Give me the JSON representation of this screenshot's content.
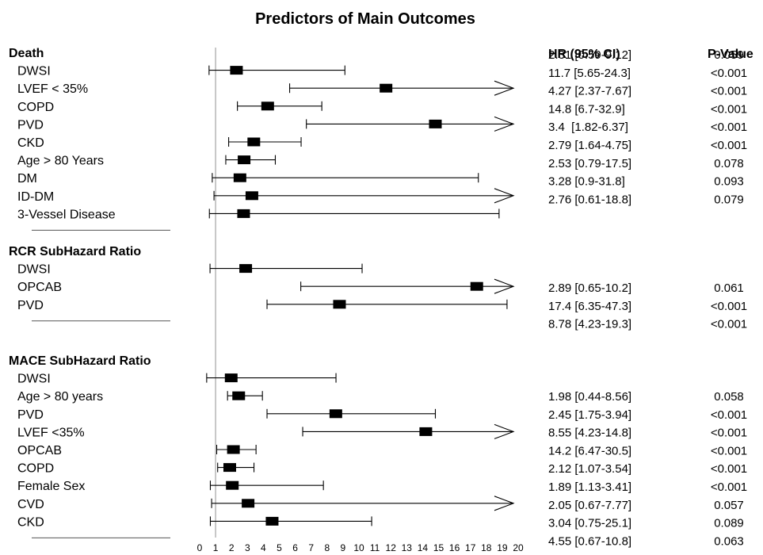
{
  "chart_data": {
    "type": "forest",
    "title": "Predictors of Main Outcomes",
    "header_hr": "HR (95% CI)",
    "header_p": "P-Value",
    "reference_line": 1,
    "xlim": [
      0,
      20
    ],
    "ticks": [
      "0",
      "1",
      "2",
      "3",
      "4",
      "5",
      "6",
      "7",
      "8",
      "9",
      "10",
      "11",
      "12",
      "13",
      "14",
      "15",
      "16",
      "17",
      "18",
      "19",
      "20"
    ],
    "sections": [
      {
        "title": "Death",
        "rows": [
          {
            "label": "DWSI",
            "est": 2.31,
            "lo": 0.59,
            "hi": 9.12,
            "arrow": false
          },
          {
            "label": "LVEF < 35%",
            "est": 11.7,
            "lo": 5.65,
            "hi": 24.3,
            "arrow": true
          },
          {
            "label": "COPD",
            "est": 4.27,
            "lo": 2.37,
            "hi": 7.67,
            "arrow": false
          },
          {
            "label": "PVD",
            "est": 14.8,
            "lo": 6.7,
            "hi": 32.9,
            "arrow": true
          },
          {
            "label": "CKD",
            "est": 3.4,
            "lo": 1.82,
            "hi": 6.37,
            "arrow": false
          },
          {
            "label": "Age > 80 Years",
            "est": 2.79,
            "lo": 1.64,
            "hi": 4.75,
            "arrow": false
          },
          {
            "label": "DM",
            "est": 2.53,
            "lo": 0.79,
            "hi": 17.5,
            "arrow": false
          },
          {
            "label": "ID-DM",
            "est": 3.28,
            "lo": 0.9,
            "hi": 31.8,
            "arrow": true
          },
          {
            "label": "3-Vessel Disease",
            "est": 2.76,
            "lo": 0.61,
            "hi": 18.8,
            "arrow": false
          }
        ],
        "values": [
          {
            "hr": "2.31 [0.59-9.12]",
            "p": "0.059"
          },
          {
            "hr": "11.7 [5.65-24.3]",
            "p": "<0.001"
          },
          {
            "hr": "4.27 [2.37-7.67]",
            "p": "<0.001"
          },
          {
            "hr": "14.8 [6.7-32.9]",
            "p": "<0.001"
          },
          {
            "hr": "3.4  [1.82-6.37]",
            "p": "<0.001"
          },
          {
            "hr": "2.79 [1.64-4.75]",
            "p": "<0.001"
          },
          {
            "hr": "2.53 [0.79-17.5]",
            "p": "0.078"
          },
          {
            "hr": "3.28 [0.9-31.8]",
            "p": "0.093"
          },
          {
            "hr": "2.76 [0.61-18.8]",
            "p": "0.079"
          }
        ]
      },
      {
        "title": "RCR SubHazard Ratio",
        "rows": [
          {
            "label": "DWSI",
            "est": 2.89,
            "lo": 0.65,
            "hi": 10.2,
            "arrow": false
          },
          {
            "label": "OPCAB",
            "est": 17.4,
            "lo": 6.35,
            "hi": 47.3,
            "arrow": true
          },
          {
            "label": "PVD",
            "est": 8.78,
            "lo": 4.23,
            "hi": 19.3,
            "arrow": false
          }
        ],
        "values": [
          {
            "hr": "2.89 [0.65-10.2]",
            "p": "0.061"
          },
          {
            "hr": "17.4 [6.35-47.3]",
            "p": "<0.001"
          },
          {
            "hr": "8.78 [4.23-19.3]",
            "p": "<0.001"
          }
        ]
      },
      {
        "title": "MACE SubHazard Ratio",
        "rows": [
          {
            "label": "DWSI",
            "est": 1.98,
            "lo": 0.44,
            "hi": 8.56,
            "arrow": false
          },
          {
            "label": "Age > 80 years",
            "est": 2.45,
            "lo": 1.75,
            "hi": 3.94,
            "arrow": false
          },
          {
            "label": "PVD",
            "est": 8.55,
            "lo": 4.23,
            "hi": 14.8,
            "arrow": false
          },
          {
            "label": "LVEF <35%",
            "est": 14.2,
            "lo": 6.47,
            "hi": 30.5,
            "arrow": true
          },
          {
            "label": "OPCAB",
            "est": 2.12,
            "lo": 1.07,
            "hi": 3.54,
            "arrow": false
          },
          {
            "label": "COPD",
            "est": 1.89,
            "lo": 1.13,
            "hi": 3.41,
            "arrow": false
          },
          {
            "label": "Female Sex",
            "est": 2.05,
            "lo": 0.67,
            "hi": 7.77,
            "arrow": false
          },
          {
            "label": "CVD",
            "est": 3.04,
            "lo": 0.75,
            "hi": 25.1,
            "arrow": true
          },
          {
            "label": "CKD",
            "est": 4.55,
            "lo": 0.67,
            "hi": 10.8,
            "arrow": false
          }
        ],
        "values": [
          {
            "hr": "1.98 [0.44-8.56]",
            "p": "0.058"
          },
          {
            "hr": "2.45 [1.75-3.94]",
            "p": "<0.001"
          },
          {
            "hr": "8.55 [4.23-14.8]",
            "p": "<0.001"
          },
          {
            "hr": "14.2 [6.47-30.5]",
            "p": "<0.001"
          },
          {
            "hr": "2.12 [1.07-3.54]",
            "p": "<0.001"
          },
          {
            "hr": "1.89 [1.13-3.41]",
            "p": "<0.001"
          },
          {
            "hr": "2.05 [0.67-7.77]",
            "p": "0.057"
          },
          {
            "hr": "3.04 [0.75-25.1]",
            "p": "0.089"
          },
          {
            "hr": "4.55 [0.67-10.8]",
            "p": "0.063"
          }
        ]
      }
    ]
  }
}
